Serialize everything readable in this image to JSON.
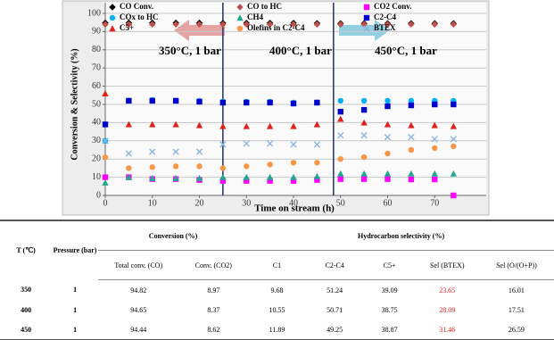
{
  "chart_data": {
    "type": "scatter",
    "xlabel": "Time on stream (h)",
    "ylabel": "Conversion & Selectivity (%)",
    "x": [
      0,
      5,
      10,
      15,
      20,
      25,
      30,
      35,
      40,
      45,
      50,
      55,
      60,
      65,
      70,
      74
    ],
    "xlim": [
      0,
      80
    ],
    "xticks": [
      0,
      10,
      20,
      30,
      40,
      50,
      60,
      70
    ],
    "ylim": [
      0,
      100
    ],
    "yticks": [
      0,
      10,
      20,
      30,
      40,
      50,
      60,
      70,
      80,
      90,
      100
    ],
    "grid": true,
    "dividers": [
      25,
      48.5
    ],
    "annotations": [
      "350°C, 1 bar",
      "400°C, 1 bar",
      "450°C, 1 bar"
    ],
    "series": [
      {
        "name": "CO Conv.",
        "color": "#000000",
        "marker": "diamond",
        "values": [
          94.8,
          94.8,
          94.8,
          94.8,
          94.8,
          94.7,
          94.7,
          94.7,
          94.7,
          94.6,
          94.5,
          94.5,
          94.5,
          94.5,
          94.5,
          94.5
        ]
      },
      {
        "name": "CO to HC",
        "color": "#c0504d",
        "marker": "diamond",
        "values": [
          94,
          94,
          94,
          94,
          94,
          94,
          94,
          94,
          94,
          94,
          94,
          94,
          94,
          94,
          94,
          94
        ]
      },
      {
        "name": "CO2 Conv.",
        "color": "#ff00ff",
        "marker": "square",
        "values": [
          10,
          10,
          9,
          9,
          8.5,
          8,
          8,
          8,
          8,
          8.5,
          9,
          9,
          9,
          8.8,
          8.8,
          0
        ]
      },
      {
        "name": "COx to HC",
        "color": "#00b0f0",
        "marker": "circle",
        "values": [
          30,
          52,
          52.5,
          52,
          52,
          51.5,
          51.5,
          51.5,
          51,
          51,
          52,
          52,
          52,
          52,
          52,
          52
        ]
      },
      {
        "name": "CH4",
        "color": "#1fa88f",
        "marker": "triangle",
        "values": [
          7,
          10,
          9.5,
          9.5,
          9.5,
          10,
          10,
          10,
          10,
          10.5,
          12,
          12,
          12,
          12,
          12,
          12
        ]
      },
      {
        "name": "C2-C4",
        "color": "#0000cc",
        "marker": "square",
        "values": [
          39,
          52,
          52,
          52,
          51.5,
          51,
          51,
          51,
          50.5,
          51,
          46,
          47,
          49,
          49.5,
          50,
          50
        ]
      },
      {
        "name": "C5+",
        "color": "#e0201c",
        "marker": "triangle",
        "values": [
          56,
          39,
          39,
          39,
          38.5,
          38,
          38,
          38,
          38,
          39,
          42,
          40,
          39,
          38.5,
          38.5,
          38
        ]
      },
      {
        "name": "Olefins in C2-C4",
        "color": "#f79646",
        "marker": "circle",
        "values": [
          21,
          15,
          15.5,
          16,
          16,
          15,
          16,
          17,
          18,
          18,
          20,
          21,
          23,
          25,
          26,
          27
        ]
      },
      {
        "name": "BTEX",
        "color": "#8db4e2",
        "marker": "x",
        "values": [
          30,
          23,
          24,
          24,
          24,
          28,
          28.5,
          28.5,
          28,
          28,
          33,
          33,
          32,
          32,
          31,
          31
        ]
      }
    ]
  },
  "table": {
    "header": [
      "T (℃)",
      "Pressure (bar)",
      "Conversion (%)",
      "Hydrocarbon selectivity (%)"
    ],
    "subheader": [
      "Total conv. (CO)",
      "Conv. (CO2)",
      "C1",
      "C2-C4",
      "C5+",
      "Sel (BTEX)",
      "Sel (O/(O+P))"
    ],
    "rows": [
      [
        350,
        1,
        94.82,
        8.97,
        9.68,
        51.24,
        39.09,
        23.65,
        16.01
      ],
      [
        400,
        1,
        94.65,
        8.37,
        10.55,
        50.71,
        38.75,
        28.09,
        17.51
      ],
      [
        450,
        1,
        94.44,
        8.62,
        11.89,
        49.25,
        38.87,
        31.46,
        26.59
      ]
    ]
  }
}
